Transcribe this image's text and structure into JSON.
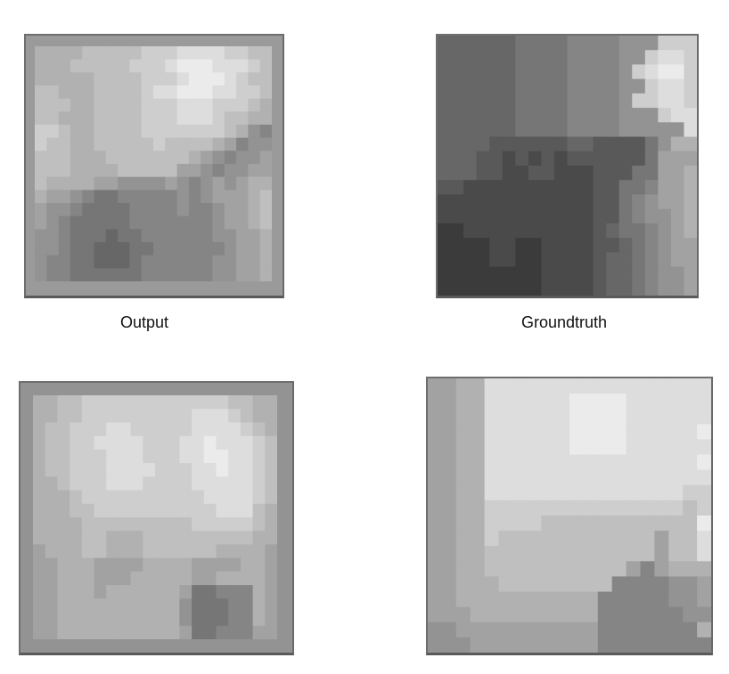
{
  "captions": {
    "output": "Output",
    "groundtruth": "Groundtruth"
  },
  "panels": [
    {
      "name": "output-image-1",
      "type": "predicted",
      "grid": [
        "aaaabbbbbcccddddccbb",
        "aaabbbbbcccdeeedddcb",
        "aaaaabbbbcccdeeedcbb",
        "bbaaabbbbcddeeeddccb",
        "bbbaabbbbcccdddcccba",
        "bbaaabbbbcccdddcbbaa",
        "ccbaabbbbcccccccba87",
        "cbbaabbbbbcbbbba9788",
        "bbbaaabbbbbbba987889",
        "bbbaaaabbbbb99878899",
        "baaaa9988889878989aa",
        "a99876677777878999ab",
        "988766667777877899ab",
        "987666667777777899ab",
        "8876665667777778899a",
        "8876655566777777899a",
        "8776655567777778899a",
        "8776666667777778899a"
      ],
      "palette": "dark-to-light"
    },
    {
      "name": "groundtruth-image-1",
      "type": "groundtruth",
      "grid": [
        "55555566667777888ccc",
        "5555556666777788cddc",
        "555555666677778cdeec",
        "5555556666777788cddc",
        "555555666677778ccddc",
        "55555566667777888cdd",
        "5555556666777788888d",
        "555544444455444468aa",
        "55544343434444446999",
        "5554433443334446699a",
        "4433333333334466799a",
        "3333333333334467899a",
        "3333333333334467889a",
        "2233333333334566789a",
        "22223322333344567899",
        "22223322333345567899",
        "22222222333345567889",
        "22222222333345567889"
      ],
      "palette": "dark-to-light"
    },
    {
      "name": "output-image-2",
      "type": "predicted",
      "grid": [
        "aabbccccccccccccbbaa",
        "aabbcccccccccdddcbaa",
        "abbcccddcccccddddcba",
        "abbccddddcccddedddcb",
        "abbcccdddcccddeeddcb",
        "abbcccddddcccddeddcb",
        "aabcccdddccccdddddcb",
        "aaabccccccccccddddcb",
        "aaabbccccccccccdddba",
        "aaaabbbbbbbbbcccccba",
        "aaaabbaaabbbbbbbbbaa",
        "9aaabbaaabbbbbbaaaa9",
        "99aaa9999aaaa9999aa9",
        "99aaa999aaaaa99aaaa9",
        "99aaa9aaaaaa966777a9",
        "99aaaaaaaaaa866677a9",
        "99aaaaaaaaaa866677a9",
        "99aaaaaaaaaa96677799"
      ],
      "palette": "dark-to-light"
    },
    {
      "name": "groundtruth-image-2",
      "type": "groundtruth",
      "grid": [
        "99aadddddddddddddddd",
        "99aaddddddeeeedddddd",
        "99aaddddddeeeedddddd",
        "99aaddddddeeeeddddde",
        "99aaddddddeeeedddddd",
        "99aaddddddddddddddde",
        "99aadddddddddddddddd",
        "99aaddddddddddddddcc",
        "99aaccccccccccccccbc",
        "99aaccccbbbbbbbbbbbe",
        "99aacbbbbbbbbbbb9bbd",
        "99aabbbbbbbbbbbb9bbd",
        "99aabbbbbbbbbb979aaa",
        "99aaabbbbbbbb7777889",
        "99aaaaaaaaaa77777889",
        "999aaaaaaaaa77777788",
        "8899999999997777777a",
        "88899999999977777777"
      ],
      "palette": "dark-to-light"
    }
  ]
}
